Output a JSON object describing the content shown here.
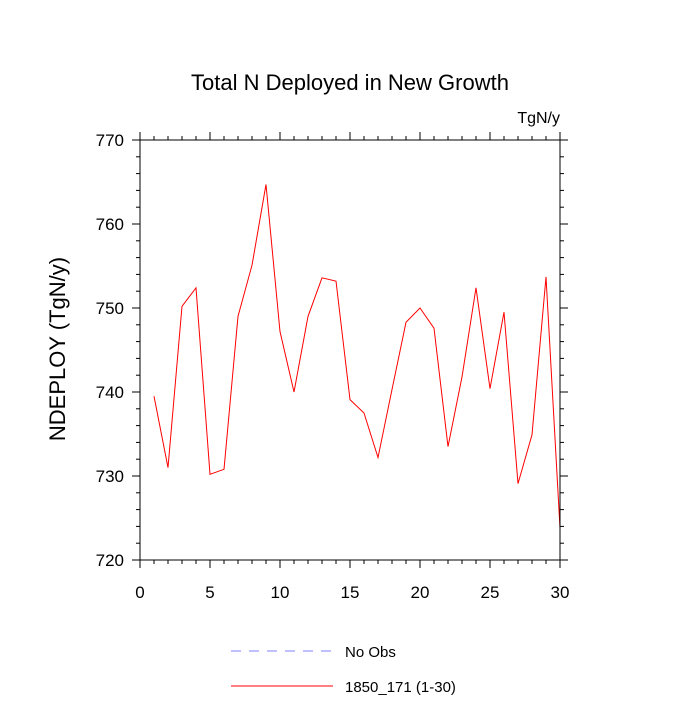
{
  "chart_data": {
    "type": "line",
    "title": "Total N Deployed in New Growth",
    "units_label": "TgN/y",
    "ylabel": "NDEPLOY  (TgN/y)",
    "xlabel": "",
    "xlim": [
      0,
      30
    ],
    "ylim": [
      720,
      770
    ],
    "x_ticks": [
      0,
      5,
      10,
      15,
      20,
      25,
      30
    ],
    "y_ticks": [
      720,
      730,
      740,
      750,
      760,
      770
    ],
    "x_tick_labels": [
      "0",
      "5",
      "10",
      "15",
      "20",
      "25",
      "30"
    ],
    "y_tick_labels": [
      "720",
      "730",
      "740",
      "750",
      "760",
      "770"
    ],
    "x_minor_step": 1,
    "y_minor_step": 2,
    "grid": false,
    "legend_position": "bottom-center",
    "series": [
      {
        "name": "1850_171 (1-30)",
        "color": "#ff0000",
        "style": "solid",
        "x": [
          1,
          2,
          3,
          4,
          5,
          6,
          7,
          8,
          9,
          10,
          11,
          12,
          13,
          14,
          15,
          16,
          17,
          18,
          19,
          20,
          21,
          22,
          23,
          24,
          25,
          26,
          27,
          28,
          29,
          30
        ],
        "values": [
          739.5,
          731.0,
          750.2,
          752.4,
          730.2,
          730.8,
          749.0,
          755.1,
          764.7,
          747.2,
          740.0,
          749.0,
          753.6,
          753.2,
          739.1,
          737.5,
          732.2,
          740.3,
          748.3,
          750.0,
          747.6,
          733.5,
          741.8,
          752.4,
          740.4,
          749.5,
          729.1,
          734.9,
          753.7,
          723.8
        ]
      }
    ],
    "legend": [
      {
        "label": "No Obs",
        "color": "#8080ff",
        "style": "dashed"
      },
      {
        "label": "1850_171 (1-30)",
        "color": "#ff0000",
        "style": "solid"
      }
    ]
  }
}
